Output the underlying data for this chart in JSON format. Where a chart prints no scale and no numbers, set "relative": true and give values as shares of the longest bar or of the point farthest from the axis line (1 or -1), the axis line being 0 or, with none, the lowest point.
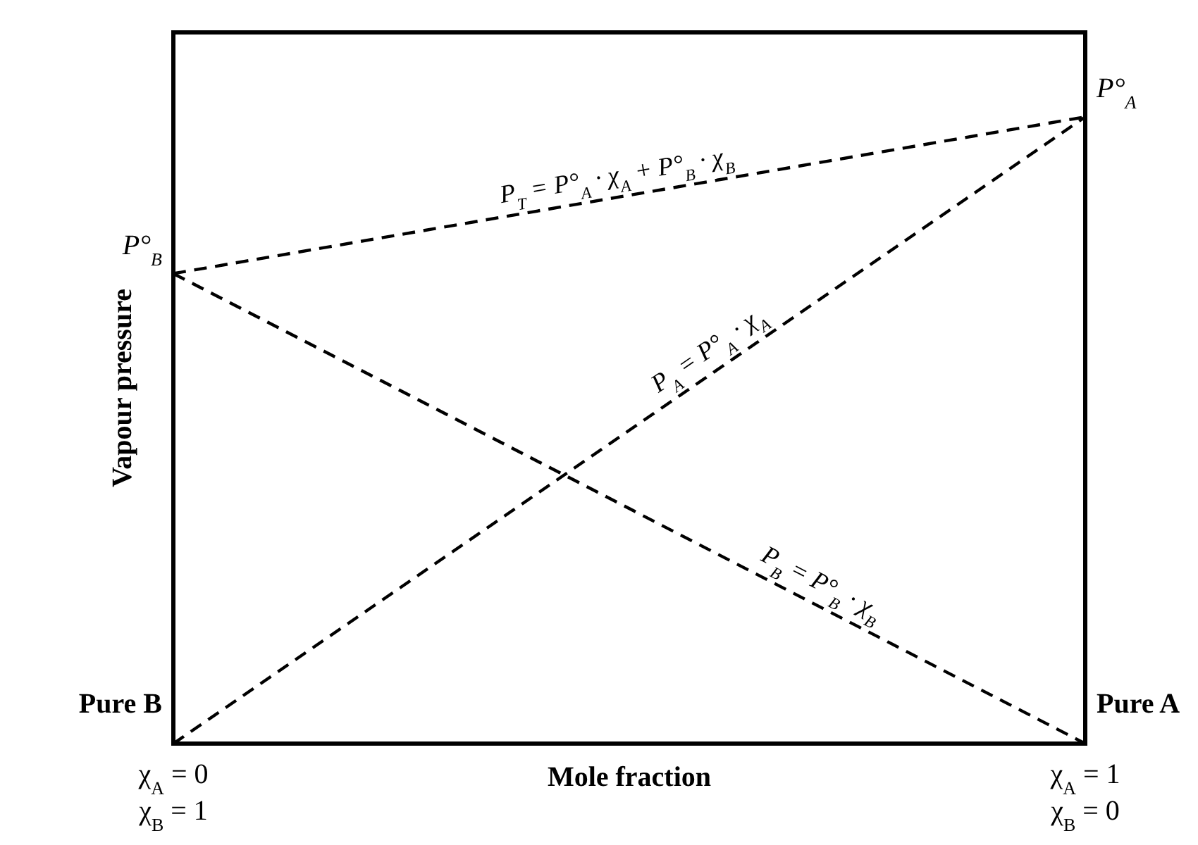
{
  "chart_data": {
    "type": "line",
    "relative": true,
    "xlabel": "Mole fraction",
    "ylabel": "Vapour pressure",
    "categories": [
      "χ$_{A}$ = 0\nχ$_{B}$ = 1",
      "χ$_{A}$ = 1\nχ$_{B}$ = 0"
    ],
    "series": [
      {
        "name": "P$_{T}$ = P°$_{A}$ · χ$_{A}$ + P°$_{B}$ · χ$_{B}$",
        "color": "#000000",
        "values": [
          0.75,
          1
        ]
      },
      {
        "name": "P$_{A}$ = P°$_{A}$ · χ$_{A}$",
        "color": "#000000",
        "values": [
          0,
          1
        ]
      },
      {
        "name": "P$_{B}$ = P°$_{B}$ · χ$_{B}$",
        "color": "#000000",
        "values": [
          0.75,
          0
        ]
      }
    ],
    "annotations": [
      {
        "text": "P°$_{A}$",
        "x": "χ$_{A}$ = 1\nχ$_{B}$ = 0",
        "y": 1
      },
      {
        "text": "P°$_{B}$",
        "x": "χ$_{A}$ = 0\nχ$_{B}$ = 1",
        "y": 0.75
      },
      {
        "text": "Pure B",
        "x": "χ$_{A}$ = 0\nχ$_{B}$ = 1",
        "y": 0
      },
      {
        "text": "Pure A",
        "x": "χ$_{A}$ = 1\nχ$_{B}$ = 0",
        "y": 0
      }
    ],
    "line_style": "dashed",
    "marker": "none"
  }
}
